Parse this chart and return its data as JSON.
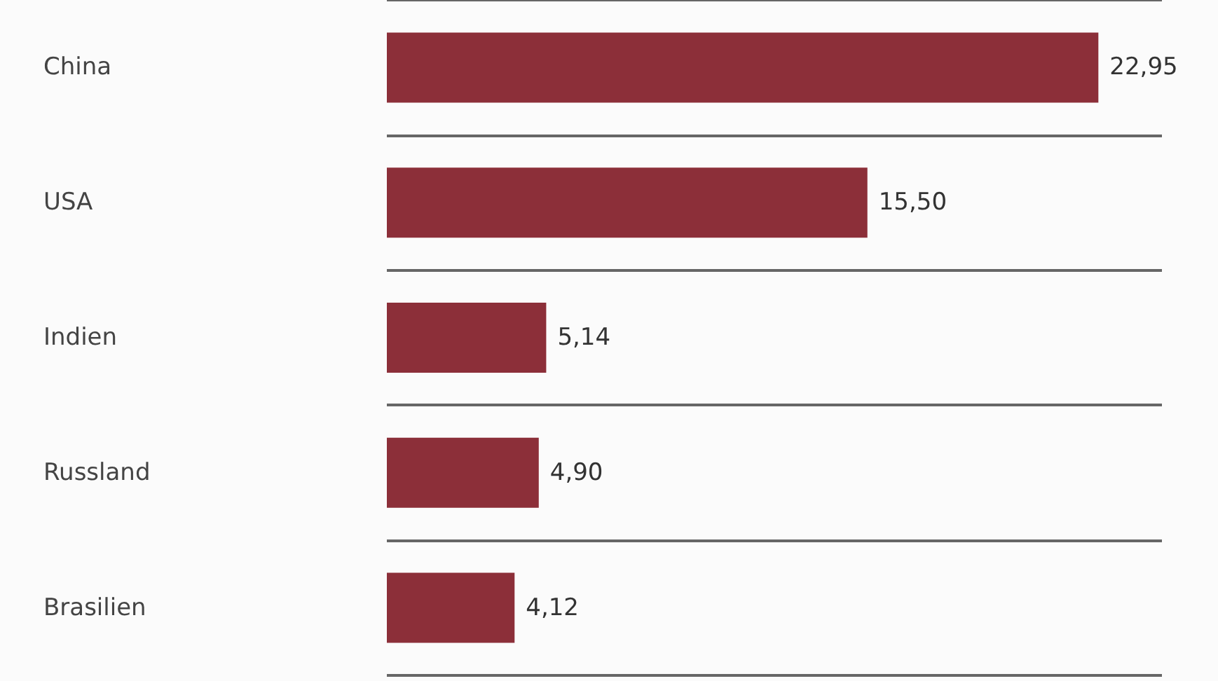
{
  "chart_data": {
    "type": "bar",
    "orientation": "horizontal",
    "categories": [
      "China",
      "USA",
      "Indien",
      "Russland",
      "Brasilien"
    ],
    "values": [
      22.95,
      15.5,
      5.14,
      4.9,
      4.12
    ],
    "value_labels": [
      "22,95",
      "15,50",
      "5,14",
      "4,90",
      "4,12"
    ],
    "color": "#8c2f39",
    "grid": "y"
  }
}
